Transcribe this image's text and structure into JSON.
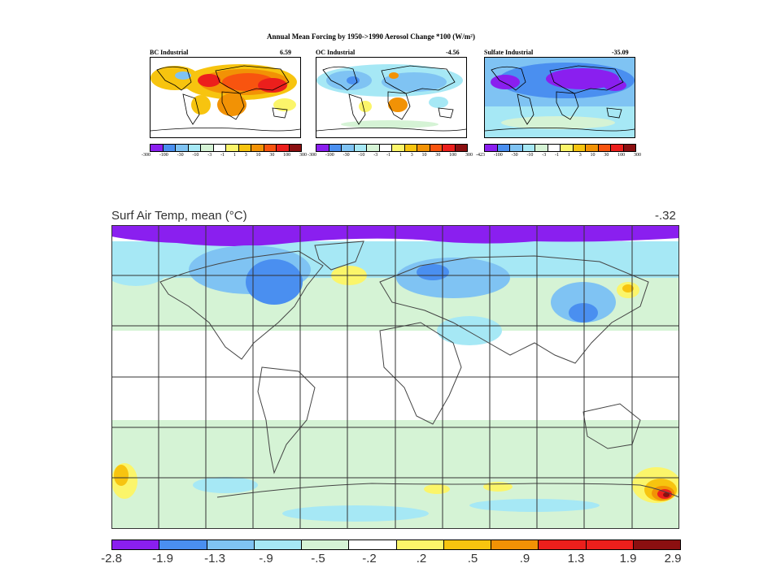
{
  "forcing_figure": {
    "title": "Annual Mean Forcing by 1950->1990 Aerosol Change *100 (W/m²)",
    "panels": [
      {
        "label": "BC Industrial",
        "value": "6.59"
      },
      {
        "label": "OC Industrial",
        "value": "-4.56"
      },
      {
        "label": "Sulfate Industrial",
        "value": "-35.09"
      }
    ],
    "scales": [
      [
        "-300",
        "-100",
        "-30",
        "-10",
        "-3",
        "-1",
        "1",
        "3",
        "10",
        "30",
        "100",
        "300"
      ],
      [
        "-300",
        "-100",
        "-30",
        "-10",
        "-3",
        "-1",
        "1",
        "3",
        "10",
        "30",
        "100",
        "300"
      ],
      [
        "-423",
        "-100",
        "-30",
        "-10",
        "-3",
        "-1",
        "1",
        "3",
        "10",
        "30",
        "100",
        "300"
      ]
    ]
  },
  "temperature_figure": {
    "title": "Surf Air Temp, mean (°C)",
    "global_mean": "-.32",
    "scale": [
      "-2.8",
      "-1.9",
      "-1.3",
      "-.9",
      "-.5",
      "-.2",
      ".2",
      ".5",
      ".9",
      "1.3",
      "1.9",
      "2.9"
    ]
  },
  "colors": {
    "scale": [
      "#8a1fef",
      "#4a8ff0",
      "#7fc3f3",
      "#a6e8f5",
      "#d5f3d5",
      "#ffffff",
      "#fbf56a",
      "#f7c40f",
      "#f29205",
      "#f8540f",
      "#ec1f1c",
      "#8b0f10"
    ]
  }
}
